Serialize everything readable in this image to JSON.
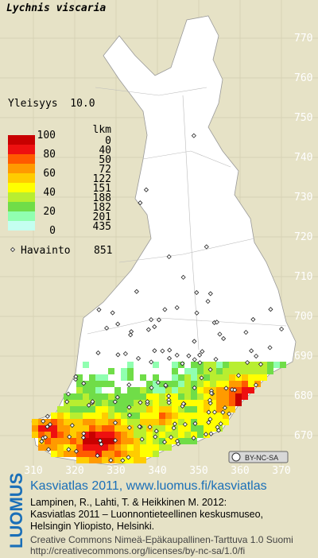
{
  "map": {
    "title": "Lychnis viscaria",
    "frequency_label": "Yleisyys  10.0",
    "legend": {
      "levels": [
        100,
        80,
        60,
        40,
        20,
        0
      ],
      "count_header": "lkm",
      "colors": [
        "#c80000",
        "#ee1010",
        "#ff5a00",
        "#ff9a00",
        "#ffcc00",
        "#ffff00",
        "#b8ee30",
        "#70dd48",
        "#90ffb0",
        "#c4fff0",
        "#ffffff"
      ],
      "counts": [
        0,
        40,
        50,
        72,
        122,
        151,
        188,
        182,
        201,
        435
      ],
      "observation_label": "Havainto",
      "observation_count": 851
    },
    "yticks": [
      770,
      760,
      750,
      740,
      730,
      720,
      710,
      700,
      690,
      680,
      670
    ],
    "xticks": [
      310,
      320,
      330,
      340,
      350,
      360,
      370
    ],
    "license_badge": "BY-NC-SA",
    "footer": {
      "logo": "LUOMUS",
      "headline": "Kasviatlas 2011, www.luomus.fi/kasviatlas",
      "citation": [
        "Lampinen, R., Lahti, T. & Heikkinen M. 2012:",
        "Kasviatlas 2011 – Luonnontieteellinen keskusmuseo,",
        "Helsingin Yliopisto, Helsinki."
      ],
      "license": [
        "Creative Commons Nimeä-Epäkaupallinen-Tarttuva 1.0 Suomi",
        "http://creativecommons.org/licenses/by-nc-sa/1.0/fi"
      ]
    }
  }
}
